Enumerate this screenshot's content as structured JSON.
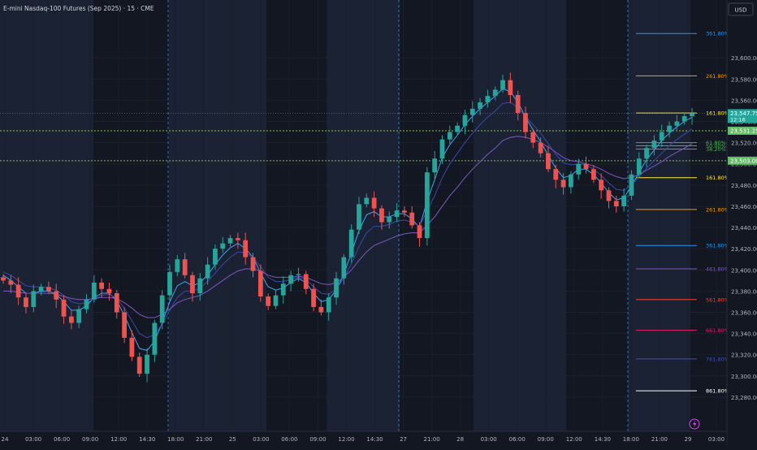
{
  "header": {
    "title": "E-mini Nasdaq-100 Futures (Sep 2025) · 15 · CME",
    "currency": "USD"
  },
  "chart_data": {
    "type": "candlestick",
    "symbol": "E-mini Nasdaq-100 Futures (Sep 2025)",
    "interval": "15",
    "exchange": "CME",
    "currency": "USD",
    "ylim": [
      23260,
      23640
    ],
    "y_ticks": [
      "23,600.00",
      "23,580.00",
      "23,560.00",
      "23,540.00",
      "23,520.00",
      "23,500.00",
      "23,480.00",
      "23,460.00",
      "23,440.00",
      "23,420.00",
      "23,400.00",
      "23,380.00",
      "23,360.00",
      "23,340.00",
      "23,320.00",
      "23,300.00",
      "23,280.00"
    ],
    "x_ticks": [
      "24",
      "03:00",
      "06:00",
      "09:00",
      "12:00",
      "14:30",
      "18:00",
      "21:00",
      "25",
      "03:00",
      "06:00",
      "09:00",
      "12:00",
      "14:30",
      "27",
      "21:00",
      "28",
      "03:00",
      "06:00",
      "09:00",
      "12:00",
      "14:30",
      "18:00",
      "21:00",
      "29",
      "03:00"
    ],
    "price_labels": [
      {
        "text": "23,547.75",
        "value": 23547.75,
        "color": "#26a69a",
        "sub": "12:16"
      },
      {
        "text": "23,531.25",
        "value": 23531.25,
        "color": "#66bb6a"
      },
      {
        "text": "23,503.00",
        "value": 23503.0,
        "color": "#66bb6a"
      }
    ],
    "levels": [
      23531.25,
      23503.0
    ],
    "last_price": 23547.75,
    "fib_upper": [
      {
        "label": "361.80%",
        "value": 23623,
        "color": "#2196f3"
      },
      {
        "label": "261.80%",
        "value": 23583,
        "color": "#ff9800"
      },
      {
        "label": "161.80%",
        "value": 23548,
        "color": "#ffeb3b"
      },
      {
        "label": "61.80%",
        "value": 23520,
        "color": "#4caf50"
      },
      {
        "label": "50.00%",
        "value": 23517,
        "color": "#4caf50"
      },
      {
        "label": "38.20%",
        "value": 23514,
        "color": "#4caf50"
      }
    ],
    "fib_lower": [
      {
        "label": "161.80%",
        "value": 23487,
        "color": "#ffeb3b"
      },
      {
        "label": "261.80%",
        "value": 23457,
        "color": "#ff9800"
      },
      {
        "label": "361.80%",
        "value": 23423,
        "color": "#2196f3"
      },
      {
        "label": "461.80%",
        "value": 23401,
        "color": "#7e57c2"
      },
      {
        "label": "561.80%",
        "value": 23372,
        "color": "#f44336"
      },
      {
        "label": "661.80%",
        "value": 23343,
        "color": "#e91e63"
      },
      {
        "label": "761.80%",
        "value": 23316,
        "color": "#3f51b5"
      },
      {
        "label": "861.80%",
        "value": 23286,
        "color": "#ffffff"
      }
    ],
    "series": [
      {
        "type": "close",
        "values": [
          23390,
          23386,
          23374,
          23365,
          23380,
          23384,
          23380,
          23372,
          23356,
          23350,
          23363,
          23372,
          23388,
          23382,
          23378,
          23360,
          23336,
          23318,
          23302,
          23320,
          23350,
          23376,
          23398,
          23410,
          23395,
          23378,
          23392,
          23405,
          23420,
          23425,
          23430,
          23428,
          23412,
          23399,
          23375,
          23366,
          23376,
          23387,
          23395,
          23396,
          23382,
          23365,
          23360,
          23374,
          23392,
          23412,
          23438,
          23462,
          23468,
          23458,
          23445,
          23450,
          23456,
          23454,
          23442,
          23430,
          23492,
          23505,
          23523,
          23530,
          23536,
          23546,
          23552,
          23558,
          23564,
          23570,
          23579,
          23565,
          23548,
          23530,
          23520,
          23510,
          23495,
          23485,
          23478,
          23490,
          23500,
          23495,
          23485,
          23475,
          23465,
          23460,
          23470,
          23490,
          23505,
          23515,
          23522,
          23530,
          23536,
          23540,
          23545,
          23547.75
        ]
      },
      {
        "type": "ema",
        "color": "#42a5f5",
        "values": [
          23395,
          23390,
          23384,
          23378,
          23378,
          23380,
          23380,
          23377,
          23370,
          23362,
          23362,
          23366,
          23374,
          23378,
          23378,
          23371,
          23357,
          23341,
          23326,
          23324,
          23333,
          23350,
          23370,
          23385,
          23389,
          23385,
          23388,
          23395,
          23405,
          23414,
          23421,
          23425,
          23420,
          23412,
          23397,
          23384,
          23381,
          23383,
          23388,
          23392,
          23388,
          23378,
          23370,
          23372,
          23381,
          23396,
          23416,
          23437,
          23452,
          23455,
          23450,
          23450,
          23453,
          23453,
          23448,
          23440,
          23465,
          23485,
          23506,
          23518,
          23527,
          23537,
          23545,
          23552,
          23558,
          23564,
          23571,
          23568,
          23558,
          23544,
          23532,
          23521,
          23508,
          23496,
          23487,
          23489,
          23495,
          23495,
          23490,
          23482,
          23473,
          23466,
          23468,
          23479,
          23492,
          23504,
          23513,
          23522,
          23529,
          23535,
          23540,
          23544
        ]
      },
      {
        "type": "ema",
        "color": "#3949ab",
        "values": [
          23398,
          23395,
          23390,
          23385,
          23384,
          23384,
          23383,
          23381,
          23376,
          23370,
          23368,
          23369,
          23373,
          23376,
          23377,
          23373,
          23364,
          23352,
          23340,
          23336,
          23339,
          23349,
          23362,
          23374,
          23380,
          23380,
          23383,
          23389,
          23397,
          23405,
          23412,
          23417,
          23416,
          23412,
          23403,
          23393,
          23389,
          23389,
          23391,
          23393,
          23391,
          23384,
          23378,
          23377,
          23382,
          23392,
          23406,
          23422,
          23435,
          23441,
          23441,
          23443,
          23446,
          23447,
          23445,
          23441,
          23456,
          23470,
          23487,
          23500,
          23510,
          23520,
          23529,
          23537,
          23544,
          23550,
          23557,
          23558,
          23553,
          23545,
          23537,
          23529,
          23519,
          23509,
          23501,
          23499,
          23500,
          23499,
          23495,
          23489,
          23482,
          23476,
          23475,
          23480,
          23488,
          23496,
          23503,
          23510,
          23517,
          23523,
          23528,
          23533
        ]
      },
      {
        "type": "ema",
        "color": "#7e57c2",
        "values": [
          23380,
          23380,
          23379,
          23378,
          23378,
          23378,
          23378,
          23377,
          23375,
          23373,
          23372,
          23372,
          23373,
          23374,
          23374,
          23373,
          23369,
          23364,
          23358,
          23355,
          23355,
          23358,
          23363,
          23369,
          23372,
          23374,
          23376,
          23380,
          23385,
          23390,
          23395,
          23399,
          23401,
          23401,
          23399,
          23395,
          23393,
          23393,
          23393,
          23394,
          23393,
          23390,
          23387,
          23386,
          23388,
          23393,
          23400,
          23409,
          23417,
          23423,
          23426,
          23429,
          23432,
          23434,
          23435,
          23435,
          23442,
          23450,
          23460,
          23470,
          23478,
          23487,
          23495,
          23502,
          23509,
          23515,
          23522,
          23525,
          23526,
          23525,
          23523,
          23520,
          23516,
          23511,
          23506,
          23503,
          23502,
          23500,
          23498,
          23495,
          23491,
          23488,
          23486,
          23487,
          23490,
          23494,
          23498,
          23502,
          23507,
          23511,
          23515,
          23519
        ]
      }
    ]
  }
}
